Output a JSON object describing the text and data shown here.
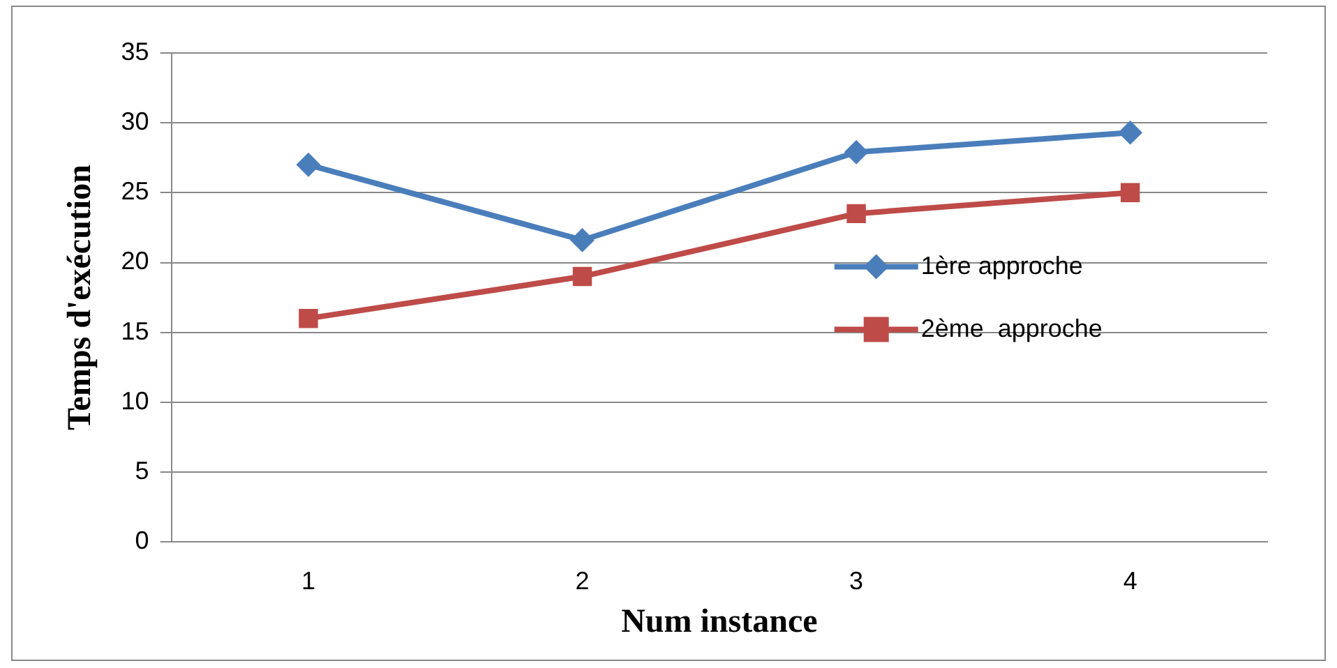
{
  "chart_data": {
    "type": "line",
    "xlabel": "Num instance",
    "ylabel": "Temps d'exécution",
    "categories": [
      "1",
      "2",
      "3",
      "4"
    ],
    "series": [
      {
        "name": "1ère approche",
        "color": "#4a7ebb",
        "marker": "diamond",
        "values": [
          27,
          21.6,
          27.9,
          29.3
        ]
      },
      {
        "name": "2ème  approche",
        "color": "#be4b48",
        "marker": "square",
        "values": [
          16,
          19,
          23.5,
          25
        ]
      }
    ],
    "ylim": [
      0,
      35
    ],
    "yticks": [
      0,
      5,
      10,
      15,
      20,
      25,
      30,
      35
    ],
    "grid": "y",
    "legend": "right",
    "line_style": "solid"
  }
}
